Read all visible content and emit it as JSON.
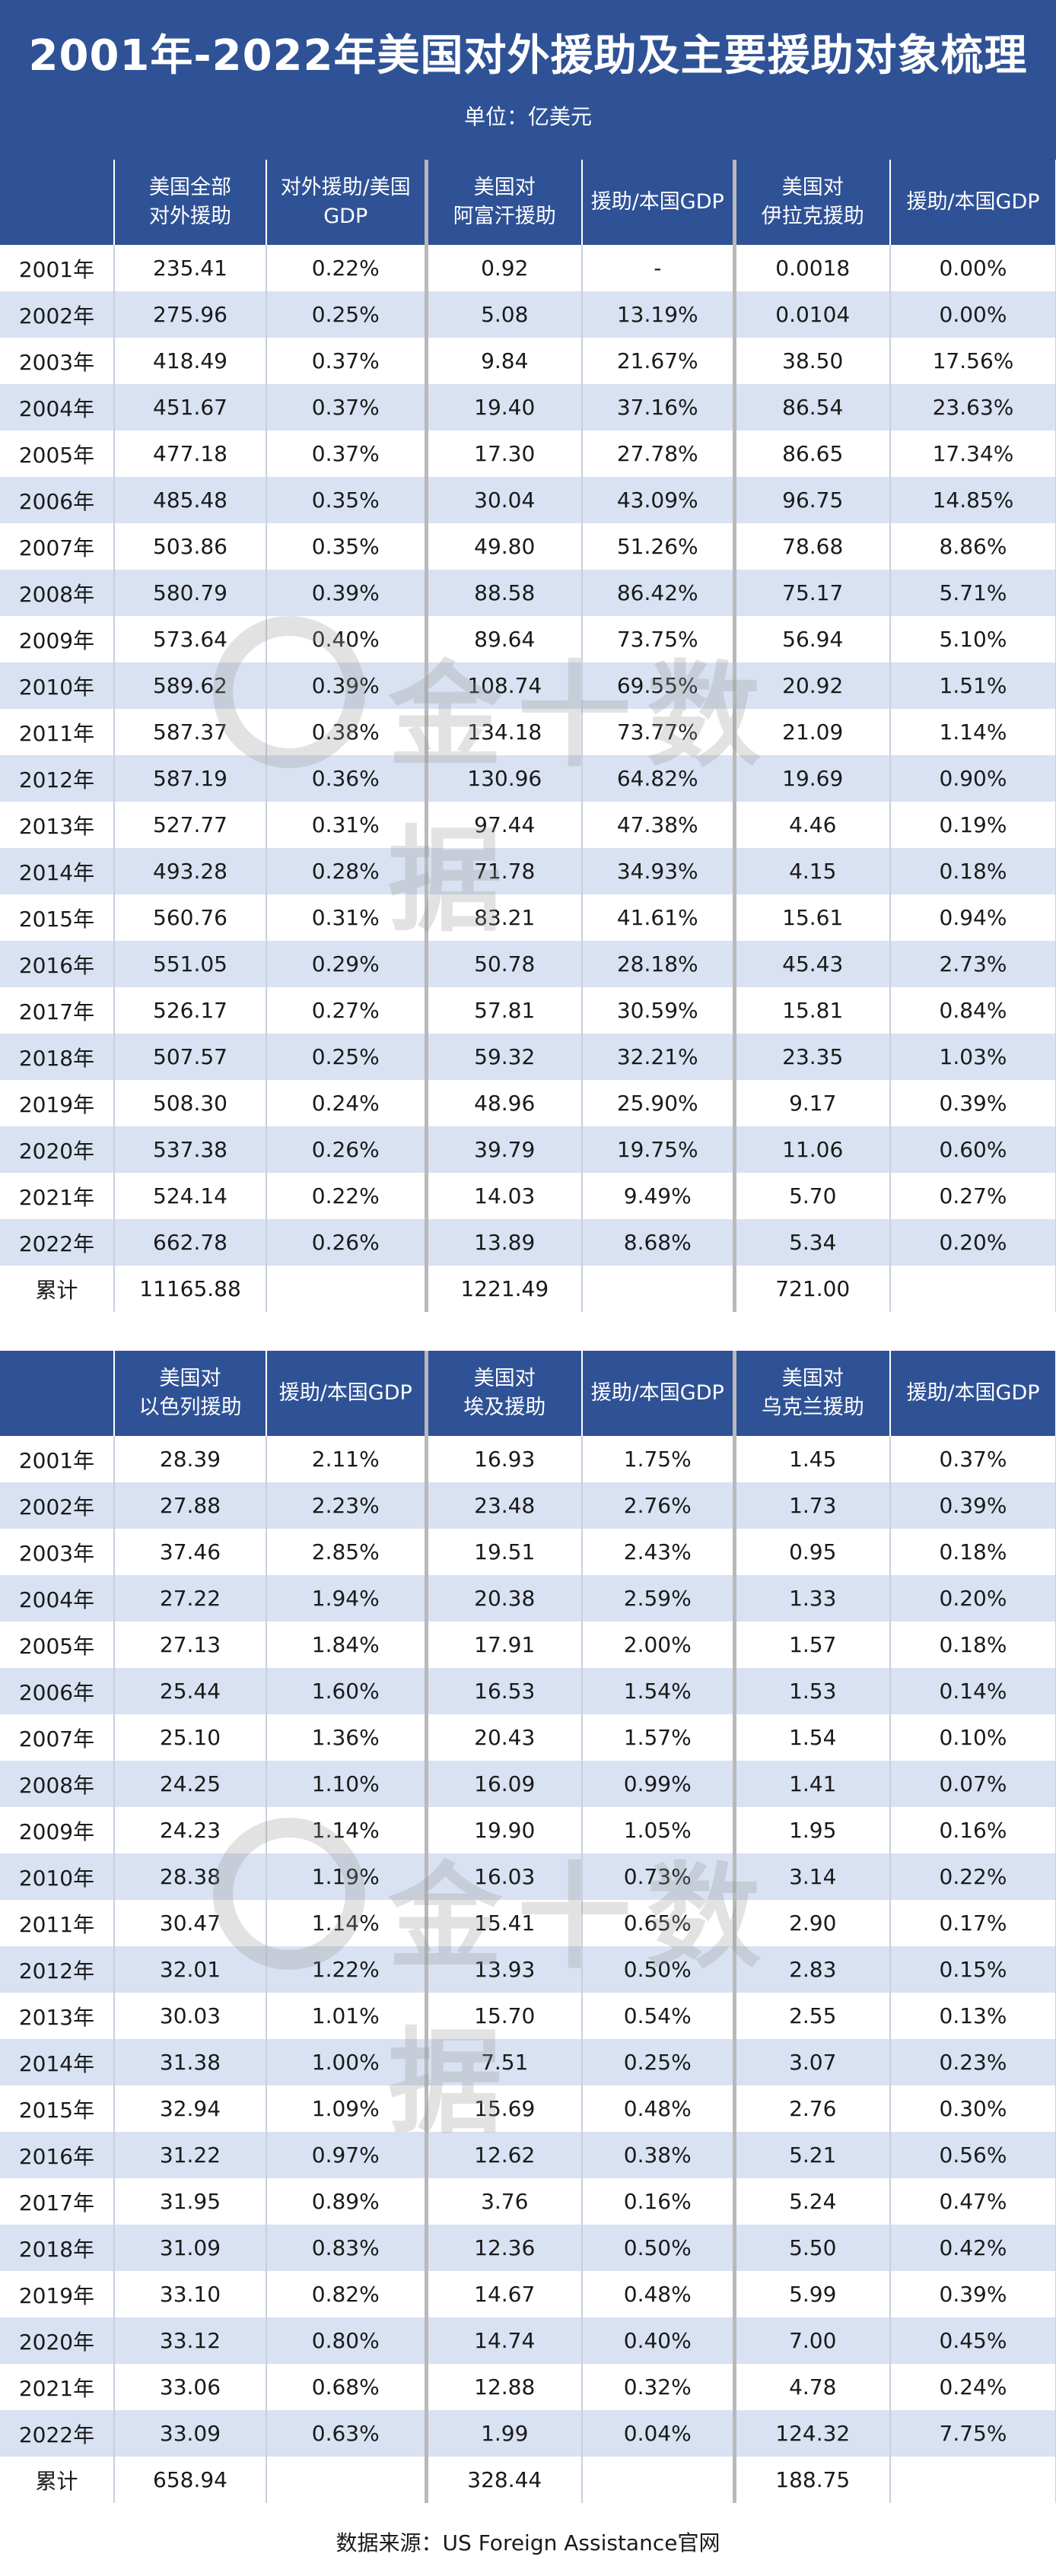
{
  "header": {
    "title": "2001年-2022年美国对外援助及主要援助对象梳理",
    "unit": "单位：亿美元"
  },
  "table1": {
    "headers": [
      "",
      "美国全部\n对外援助",
      "对外援助/美国\nGDP",
      "美国对\n阿富汗援助",
      "援助/本国GDP",
      "美国对\n伊拉克援助",
      "援助/本国GDP"
    ],
    "rows": [
      [
        "2001年",
        "235.41",
        "0.22%",
        "0.92",
        "-",
        "0.0018",
        "0.00%"
      ],
      [
        "2002年",
        "275.96",
        "0.25%",
        "5.08",
        "13.19%",
        "0.0104",
        "0.00%"
      ],
      [
        "2003年",
        "418.49",
        "0.37%",
        "9.84",
        "21.67%",
        "38.50",
        "17.56%"
      ],
      [
        "2004年",
        "451.67",
        "0.37%",
        "19.40",
        "37.16%",
        "86.54",
        "23.63%"
      ],
      [
        "2005年",
        "477.18",
        "0.37%",
        "17.30",
        "27.78%",
        "86.65",
        "17.34%"
      ],
      [
        "2006年",
        "485.48",
        "0.35%",
        "30.04",
        "43.09%",
        "96.75",
        "14.85%"
      ],
      [
        "2007年",
        "503.86",
        "0.35%",
        "49.80",
        "51.26%",
        "78.68",
        "8.86%"
      ],
      [
        "2008年",
        "580.79",
        "0.39%",
        "88.58",
        "86.42%",
        "75.17",
        "5.71%"
      ],
      [
        "2009年",
        "573.64",
        "0.40%",
        "89.64",
        "73.75%",
        "56.94",
        "5.10%"
      ],
      [
        "2010年",
        "589.62",
        "0.39%",
        "108.74",
        "69.55%",
        "20.92",
        "1.51%"
      ],
      [
        "2011年",
        "587.37",
        "0.38%",
        "134.18",
        "73.77%",
        "21.09",
        "1.14%"
      ],
      [
        "2012年",
        "587.19",
        "0.36%",
        "130.96",
        "64.82%",
        "19.69",
        "0.90%"
      ],
      [
        "2013年",
        "527.77",
        "0.31%",
        "97.44",
        "47.38%",
        "4.46",
        "0.19%"
      ],
      [
        "2014年",
        "493.28",
        "0.28%",
        "71.78",
        "34.93%",
        "4.15",
        "0.18%"
      ],
      [
        "2015年",
        "560.76",
        "0.31%",
        "83.21",
        "41.61%",
        "15.61",
        "0.94%"
      ],
      [
        "2016年",
        "551.05",
        "0.29%",
        "50.78",
        "28.18%",
        "45.43",
        "2.73%"
      ],
      [
        "2017年",
        "526.17",
        "0.27%",
        "57.81",
        "30.59%",
        "15.81",
        "0.84%"
      ],
      [
        "2018年",
        "507.57",
        "0.25%",
        "59.32",
        "32.21%",
        "23.35",
        "1.03%"
      ],
      [
        "2019年",
        "508.30",
        "0.24%",
        "48.96",
        "25.90%",
        "9.17",
        "0.39%"
      ],
      [
        "2020年",
        "537.38",
        "0.26%",
        "39.79",
        "19.75%",
        "11.06",
        "0.60%"
      ],
      [
        "2021年",
        "524.14",
        "0.22%",
        "14.03",
        "9.49%",
        "5.70",
        "0.27%"
      ],
      [
        "2022年",
        "662.78",
        "0.26%",
        "13.89",
        "8.68%",
        "5.34",
        "0.20%"
      ]
    ],
    "total": [
      "累计",
      "11165.88",
      "",
      "1221.49",
      "",
      "721.00",
      ""
    ]
  },
  "table2": {
    "headers": [
      "",
      "美国对\n以色列援助",
      "援助/本国GDP",
      "美国对\n埃及援助",
      "援助/本国GDP",
      "美国对\n乌克兰援助",
      "援助/本国GDP"
    ],
    "rows": [
      [
        "2001年",
        "28.39",
        "2.11%",
        "16.93",
        "1.75%",
        "1.45",
        "0.37%"
      ],
      [
        "2002年",
        "27.88",
        "2.23%",
        "23.48",
        "2.76%",
        "1.73",
        "0.39%"
      ],
      [
        "2003年",
        "37.46",
        "2.85%",
        "19.51",
        "2.43%",
        "0.95",
        "0.18%"
      ],
      [
        "2004年",
        "27.22",
        "1.94%",
        "20.38",
        "2.59%",
        "1.33",
        "0.20%"
      ],
      [
        "2005年",
        "27.13",
        "1.84%",
        "17.91",
        "2.00%",
        "1.57",
        "0.18%"
      ],
      [
        "2006年",
        "25.44",
        "1.60%",
        "16.53",
        "1.54%",
        "1.53",
        "0.14%"
      ],
      [
        "2007年",
        "25.10",
        "1.36%",
        "20.43",
        "1.57%",
        "1.54",
        "0.10%"
      ],
      [
        "2008年",
        "24.25",
        "1.10%",
        "16.09",
        "0.99%",
        "1.41",
        "0.07%"
      ],
      [
        "2009年",
        "24.23",
        "1.14%",
        "19.90",
        "1.05%",
        "1.95",
        "0.16%"
      ],
      [
        "2010年",
        "28.38",
        "1.19%",
        "16.03",
        "0.73%",
        "3.14",
        "0.22%"
      ],
      [
        "2011年",
        "30.47",
        "1.14%",
        "15.41",
        "0.65%",
        "2.90",
        "0.17%"
      ],
      [
        "2012年",
        "32.01",
        "1.22%",
        "13.93",
        "0.50%",
        "2.83",
        "0.15%"
      ],
      [
        "2013年",
        "30.03",
        "1.01%",
        "15.70",
        "0.54%",
        "2.55",
        "0.13%"
      ],
      [
        "2014年",
        "31.38",
        "1.00%",
        "7.51",
        "0.25%",
        "3.07",
        "0.23%"
      ],
      [
        "2015年",
        "32.94",
        "1.09%",
        "15.69",
        "0.48%",
        "2.76",
        "0.30%"
      ],
      [
        "2016年",
        "31.22",
        "0.97%",
        "12.62",
        "0.38%",
        "5.21",
        "0.56%"
      ],
      [
        "2017年",
        "31.95",
        "0.89%",
        "3.76",
        "0.16%",
        "5.24",
        "0.47%"
      ],
      [
        "2018年",
        "31.09",
        "0.83%",
        "12.36",
        "0.50%",
        "5.50",
        "0.42%"
      ],
      [
        "2019年",
        "33.10",
        "0.82%",
        "14.67",
        "0.48%",
        "5.99",
        "0.39%"
      ],
      [
        "2020年",
        "33.12",
        "0.80%",
        "14.74",
        "0.40%",
        "7.00",
        "0.45%"
      ],
      [
        "2021年",
        "33.06",
        "0.68%",
        "12.88",
        "0.32%",
        "4.78",
        "0.24%"
      ],
      [
        "2022年",
        "33.09",
        "0.63%",
        "1.99",
        "0.04%",
        "124.32",
        "7.75%"
      ]
    ],
    "total": [
      "累计",
      "658.94",
      "",
      "328.44",
      "",
      "188.75",
      ""
    ]
  },
  "watermark": {
    "text": "金十数据",
    "icon": "jin10-logo-icon"
  },
  "footer": {
    "source": "数据来源：US Foreign Assistance官网"
  },
  "colors": {
    "header_bg": "#2f5296",
    "band_bg": "#d9e2f2",
    "separator": "#b9b9b9"
  }
}
